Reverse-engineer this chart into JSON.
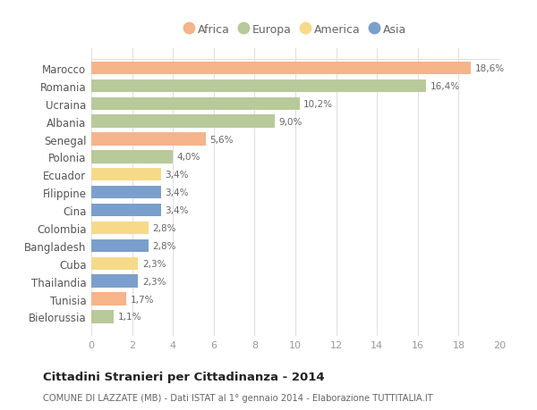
{
  "countries": [
    "Marocco",
    "Romania",
    "Ucraina",
    "Albania",
    "Senegal",
    "Polonia",
    "Ecuador",
    "Filippine",
    "Cina",
    "Colombia",
    "Bangladesh",
    "Cuba",
    "Thailandia",
    "Tunisia",
    "Bielorussia"
  ],
  "values": [
    18.6,
    16.4,
    10.2,
    9.0,
    5.6,
    4.0,
    3.4,
    3.4,
    3.4,
    2.8,
    2.8,
    2.3,
    2.3,
    1.7,
    1.1
  ],
  "continents": [
    "Africa",
    "Europa",
    "Europa",
    "Europa",
    "Africa",
    "Europa",
    "America",
    "Asia",
    "Asia",
    "America",
    "Asia",
    "America",
    "Asia",
    "Africa",
    "Europa"
  ],
  "colors": {
    "Africa": "#F5B48A",
    "Europa": "#B8C99A",
    "America": "#F7D98A",
    "Asia": "#7B9FCC"
  },
  "legend_order": [
    "Africa",
    "Europa",
    "America",
    "Asia"
  ],
  "xlim": [
    0,
    20
  ],
  "xticks": [
    0,
    2,
    4,
    6,
    8,
    10,
    12,
    14,
    16,
    18,
    20
  ],
  "title": "Cittadini Stranieri per Cittadinanza - 2014",
  "subtitle": "COMUNE DI LAZZATE (MB) - Dati ISTAT al 1° gennaio 2014 - Elaborazione TUTTITALIA.IT",
  "background_color": "#FFFFFF",
  "grid_color": "#E0E0E0",
  "bar_height": 0.72
}
